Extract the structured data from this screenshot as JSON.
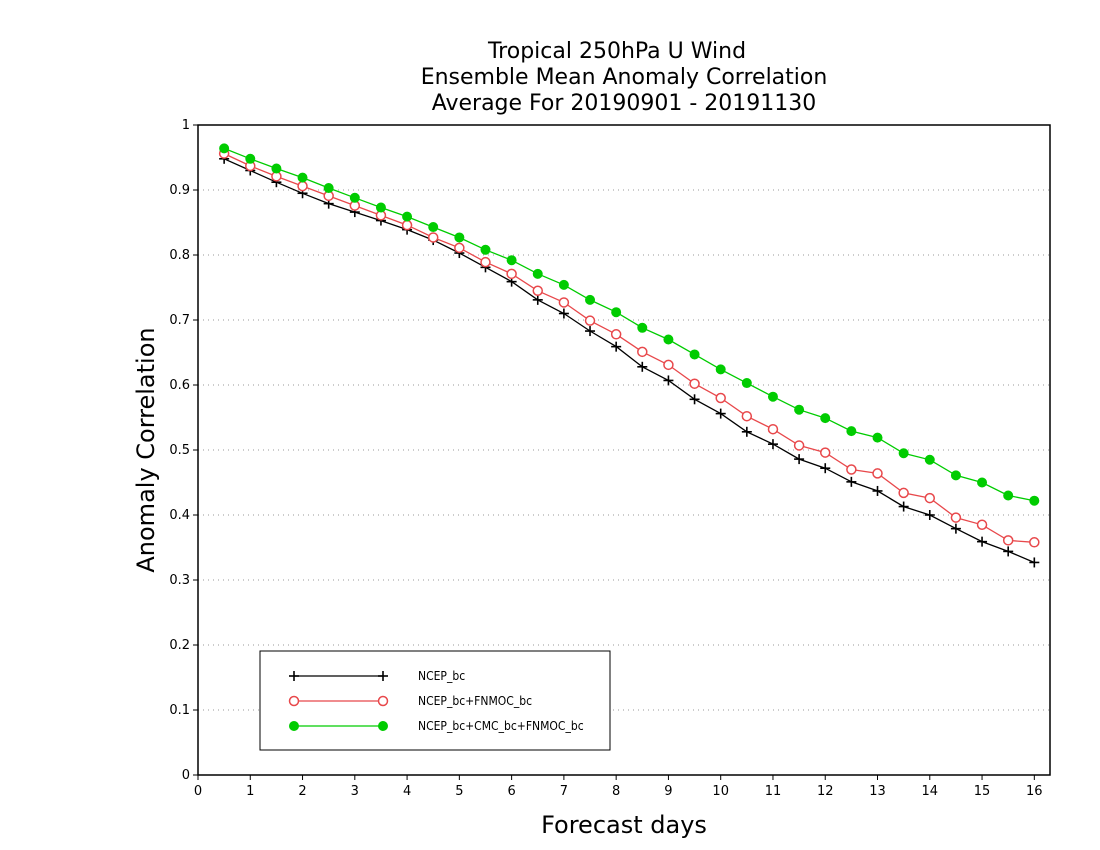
{
  "chart_data": {
    "type": "line",
    "title": [
      "Tropical 250hPa U Wind",
      "Ensemble Mean Anomaly Correlation",
      "Average For 20190901 - 20191130"
    ],
    "xlabel": "Forecast days",
    "ylabel": "Anomaly Correlation",
    "xlim": [
      0,
      16.3
    ],
    "ylim": [
      0,
      1
    ],
    "xticks": [
      "0",
      "1",
      "2",
      "3",
      "4",
      "5",
      "6",
      "7",
      "8",
      "9",
      "10",
      "11",
      "12",
      "13",
      "14",
      "15",
      "16"
    ],
    "yticks": [
      "0",
      "0.1",
      "0.2",
      "0.3",
      "0.4",
      "0.5",
      "0.6",
      "0.7",
      "0.8",
      "0.9",
      "1"
    ],
    "grid": true,
    "legend_position": "bottom-left",
    "x": [
      0.5,
      1,
      1.5,
      2,
      2.5,
      3,
      3.5,
      4,
      4.5,
      5,
      5.5,
      6,
      6.5,
      7,
      7.5,
      8,
      8.5,
      9,
      9.5,
      10,
      10.5,
      11,
      11.5,
      12,
      12.5,
      13,
      13.5,
      14,
      14.5,
      15,
      15.5,
      16
    ],
    "series": [
      {
        "name": "NCEP_bc",
        "color": "#000000",
        "marker": "plus",
        "values": [
          0.948,
          0.93,
          0.912,
          0.895,
          0.879,
          0.866,
          0.853,
          0.839,
          0.823,
          0.803,
          0.781,
          0.759,
          0.731,
          0.71,
          0.683,
          0.659,
          0.628,
          0.607,
          0.578,
          0.556,
          0.528,
          0.509,
          0.486,
          0.472,
          0.451,
          0.437,
          0.413,
          0.4,
          0.379,
          0.359,
          0.344,
          0.327
        ]
      },
      {
        "name": "NCEP_bc+FNMOC_bc",
        "color": "#e8484b",
        "marker": "open-circle",
        "values": [
          0.956,
          0.937,
          0.921,
          0.906,
          0.891,
          0.876,
          0.861,
          0.846,
          0.827,
          0.811,
          0.789,
          0.771,
          0.745,
          0.727,
          0.699,
          0.678,
          0.651,
          0.631,
          0.602,
          0.58,
          0.552,
          0.532,
          0.507,
          0.496,
          0.47,
          0.464,
          0.434,
          0.426,
          0.396,
          0.385,
          0.361,
          0.358
        ]
      },
      {
        "name": "NCEP_bc+CMC_bc+FNMOC_bc",
        "color": "#00cc00",
        "marker": "filled-circle",
        "values": [
          0.964,
          0.948,
          0.933,
          0.919,
          0.903,
          0.888,
          0.873,
          0.859,
          0.843,
          0.827,
          0.808,
          0.792,
          0.771,
          0.754,
          0.731,
          0.712,
          0.688,
          0.67,
          0.647,
          0.624,
          0.603,
          0.582,
          0.562,
          0.549,
          0.529,
          0.519,
          0.495,
          0.485,
          0.461,
          0.45,
          0.43,
          0.422
        ]
      }
    ]
  }
}
